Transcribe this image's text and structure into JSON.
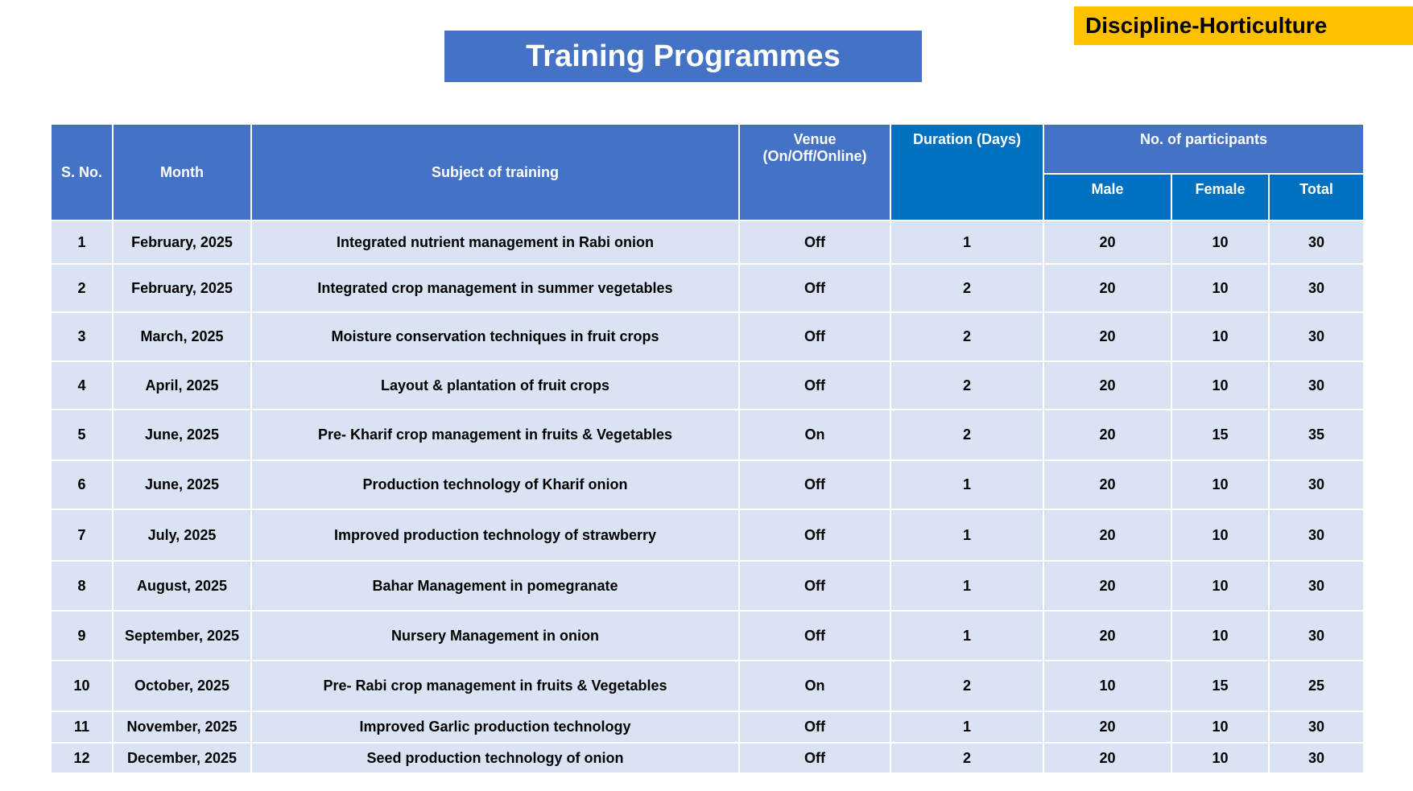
{
  "badge": "Discipline-Horticulture",
  "title": "Training Programmes",
  "table": {
    "columns": [
      "S. No.",
      "Month",
      "Subject of training",
      "Venue (On/Off/Online)",
      "Duration (Days)",
      "No. of participants"
    ],
    "subcolumns": [
      "Male",
      "Female",
      "Total"
    ],
    "rows": [
      [
        1,
        "February, 2025",
        "Integrated nutrient management in Rabi onion",
        "Off",
        1,
        20,
        10,
        30
      ],
      [
        2,
        "February, 2025",
        "Integrated crop management in summer vegetables",
        "Off",
        2,
        20,
        10,
        30
      ],
      [
        3,
        "March, 2025",
        "Moisture conservation techniques in fruit crops",
        "Off",
        2,
        20,
        10,
        30
      ],
      [
        4,
        "April, 2025",
        "Layout & plantation of fruit crops",
        "Off",
        2,
        20,
        10,
        30
      ],
      [
        5,
        "June, 2025",
        "Pre- Kharif crop management in fruits & Vegetables",
        "On",
        2,
        20,
        15,
        35
      ],
      [
        6,
        "June, 2025",
        "Production technology of Kharif onion",
        "Off",
        1,
        20,
        10,
        30
      ],
      [
        7,
        "July, 2025",
        "Improved production technology of strawberry",
        "Off",
        1,
        20,
        10,
        30
      ],
      [
        8,
        "August, 2025",
        "Bahar Management in pomegranate",
        "Off",
        1,
        20,
        10,
        30
      ],
      [
        9,
        "September, 2025",
        "Nursery Management in onion",
        "Off",
        1,
        20,
        10,
        30
      ],
      [
        10,
        "October, 2025",
        "Pre- Rabi crop management in fruits & Vegetables",
        "On",
        2,
        10,
        15,
        25
      ],
      [
        11,
        "November, 2025",
        "Improved Garlic production technology",
        "Off",
        1,
        20,
        10,
        30
      ],
      [
        12,
        "December, 2025",
        "Seed production technology of onion",
        "Off",
        2,
        20,
        10,
        30
      ]
    ]
  }
}
